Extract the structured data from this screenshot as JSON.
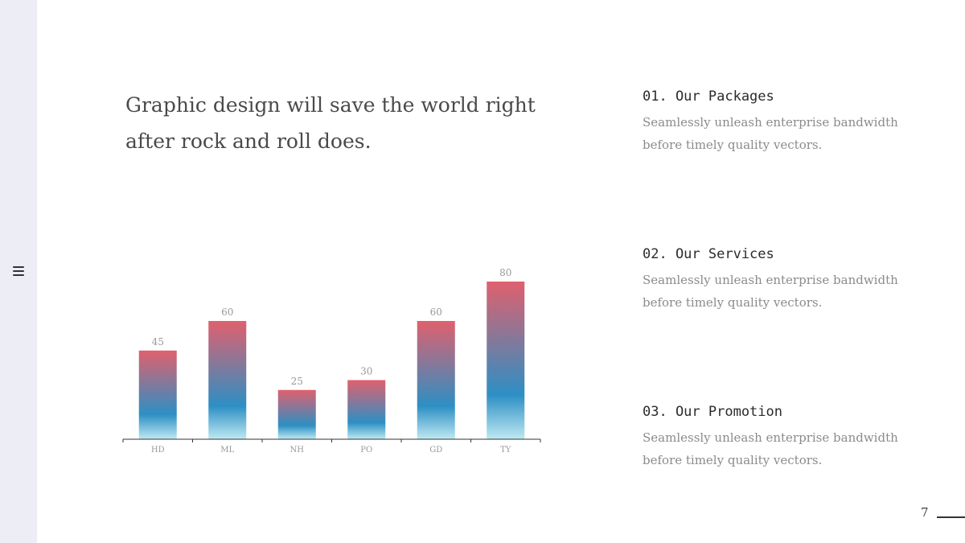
{
  "slide": {
    "headline": "Graphic design will save the world right after rock and roll does.",
    "page_number": "7"
  },
  "features": [
    {
      "title": "01. Our Packages",
      "description": "Seamlessly unleash enterprise bandwidth before timely quality vectors."
    },
    {
      "title": "02. Our Services",
      "description": "Seamlessly unleash enterprise bandwidth before timely quality vectors."
    },
    {
      "title": "03. Our Promotion",
      "description": "Seamlessly unleash enterprise bandwidth before timely quality vectors."
    }
  ],
  "chart_data": {
    "type": "bar",
    "categories": [
      "HD",
      "ML",
      "NH",
      "PO",
      "GD",
      "TY"
    ],
    "values": [
      45,
      60,
      25,
      30,
      60,
      80
    ],
    "title": "",
    "xlabel": "",
    "ylabel": "",
    "ylim": [
      0,
      80
    ],
    "grid": false,
    "data_labels": true,
    "colors": {
      "top": "#e0606e",
      "middle": "#2d8fc4",
      "bottom": "#bfe9f2",
      "axis": "#333333",
      "label": "#999999"
    }
  },
  "icons": {
    "menu": "hamburger-menu-icon"
  }
}
